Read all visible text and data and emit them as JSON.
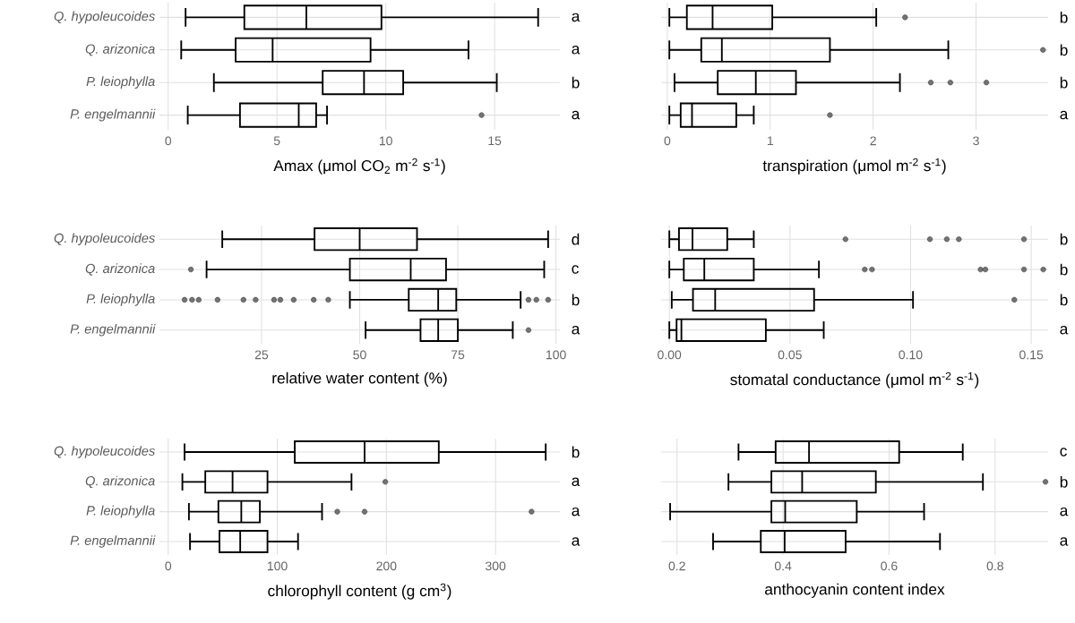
{
  "chart_data": [
    {
      "type": "box",
      "orientation": "horizontal",
      "grid": true,
      "xlabel": "Amax (μmol CO$_{2}$ m$^{-2}$ s$^{-1}$)",
      "categories": [
        "Q. hypoleucoides",
        "Q. arizonica",
        "P. leiophylla",
        "P. engelmannii"
      ],
      "xlim": [
        -0.4,
        18
      ],
      "xticks": [
        0,
        5,
        10,
        15
      ],
      "boxes": [
        {
          "low": 0.8,
          "q1": 3.5,
          "median": 6.35,
          "q3": 9.8,
          "high": 17.0
        },
        {
          "low": 0.6,
          "q1": 3.1,
          "median": 4.8,
          "q3": 9.3,
          "high": 13.8
        },
        {
          "low": 2.1,
          "q1": 7.1,
          "median": 9.0,
          "q3": 10.8,
          "high": 15.1
        },
        {
          "low": 0.9,
          "q1": 3.3,
          "median": 6.0,
          "q3": 6.8,
          "high": 7.3,
          "outliers": [
            14.4
          ]
        }
      ],
      "annotations": [
        "a",
        "a",
        "b",
        "a"
      ]
    },
    {
      "type": "box",
      "orientation": "horizontal",
      "grid": true,
      "tick_labels": "x",
      "xlabel": "transpiration (μmol m$^{-2}$ s$^{-1}$)",
      "categories": [
        null,
        null,
        null,
        null
      ],
      "xlim": [
        -0.06,
        3.7
      ],
      "xticks": [
        0,
        1,
        2,
        3
      ],
      "boxes": [
        {
          "low": 0.02,
          "q1": 0.19,
          "median": 0.44,
          "q3": 1.02,
          "high": 2.03,
          "outliers": [
            2.31
          ]
        },
        {
          "low": 0.02,
          "q1": 0.33,
          "median": 0.53,
          "q3": 1.58,
          "high": 2.73,
          "outliers": [
            3.65
          ]
        },
        {
          "low": 0.07,
          "q1": 0.49,
          "median": 0.86,
          "q3": 1.25,
          "high": 2.26,
          "outliers": [
            2.56,
            2.75,
            3.1
          ]
        },
        {
          "low": 0.02,
          "q1": 0.13,
          "median": 0.24,
          "q3": 0.67,
          "high": 0.84,
          "outliers": [
            1.58
          ]
        }
      ],
      "annotations": [
        "b",
        "b",
        "b",
        "a"
      ]
    },
    {
      "type": "box",
      "orientation": "horizontal",
      "grid": true,
      "xlabel": "relative water content (%)",
      "categories": [
        "Q. hypoleucoides",
        "Q. arizonica",
        "P. leiophylla",
        "P. engelmannii"
      ],
      "xlim": [
        -1,
        101
      ],
      "xticks": [
        25,
        50,
        75,
        100
      ],
      "boxes": [
        {
          "low": 15,
          "q1": 38.5,
          "median": 50,
          "q3": 64.6,
          "high": 98
        },
        {
          "low": 11,
          "q1": 47.5,
          "median": 63,
          "q3": 72,
          "high": 97,
          "outliers": [
            7
          ]
        },
        {
          "low": 47.5,
          "q1": 62.5,
          "median": 70,
          "q3": 74.6,
          "high": 91,
          "outliers": [
            5.4,
            7.3,
            9,
            13.8,
            20.4,
            23.5,
            28.2,
            29.8,
            33.2,
            38.3,
            42,
            93,
            95,
            98
          ]
        },
        {
          "low": 51.5,
          "q1": 65.5,
          "median": 70,
          "q3": 75,
          "high": 89,
          "outliers": [
            93
          ]
        }
      ],
      "annotations": [
        "d",
        "c",
        "b",
        "a"
      ]
    },
    {
      "type": "box",
      "orientation": "horizontal",
      "grid": true,
      "tick_labels": "x",
      "xlabel": "stomatal conductance (μmol m$^{-2}$ s$^{-1}$)",
      "categories": [
        null,
        null,
        null,
        null
      ],
      "xlim": [
        -0.0034,
        0.157
      ],
      "xticks": [
        {
          "value": 0,
          "label": "0.00"
        },
        {
          "value": 0.05,
          "label": "0.05"
        },
        {
          "value": 0.1,
          "label": "0.10"
        },
        {
          "value": 0.15,
          "label": "0.15"
        }
      ],
      "boxes": [
        {
          "low": 0,
          "q1": 0.004,
          "median": 0.0096,
          "q3": 0.024,
          "high": 0.035,
          "outliers": [
            0.073,
            0.108,
            0.115,
            0.12,
            0.147
          ]
        },
        {
          "low": 0,
          "q1": 0.006,
          "median": 0.0145,
          "q3": 0.035,
          "high": 0.062,
          "outliers": [
            0.081,
            0.084,
            0.129,
            0.131,
            0.147,
            0.155
          ]
        },
        {
          "low": 0.001,
          "q1": 0.0098,
          "median": 0.019,
          "q3": 0.06,
          "high": 0.101,
          "outliers": [
            0.143
          ]
        },
        {
          "low": 0,
          "q1": 0.003,
          "median": 0.005,
          "q3": 0.04,
          "high": 0.064
        }
      ],
      "annotations": [
        "b",
        "b",
        "b",
        "a"
      ]
    },
    {
      "type": "box",
      "orientation": "horizontal",
      "grid": true,
      "xlabel": "chlorophyll content (g cm$^{3}$)",
      "categories": [
        "Q. hypoleucoides",
        "Q. arizonica",
        "P. leiophylla",
        "P. engelmannii"
      ],
      "xlim": [
        -8,
        359
      ],
      "xticks": [
        0,
        100,
        200,
        300
      ],
      "boxes": [
        {
          "low": 15,
          "q1": 116,
          "median": 180,
          "q3": 248,
          "high": 346
        },
        {
          "low": 13,
          "q1": 34,
          "median": 59,
          "q3": 91,
          "high": 168,
          "outliers": [
            199
          ]
        },
        {
          "low": 19,
          "q1": 46,
          "median": 67,
          "q3": 84,
          "high": 141,
          "outliers": [
            155,
            180,
            333
          ]
        },
        {
          "low": 20,
          "q1": 47,
          "median": 66,
          "q3": 91,
          "high": 119
        }
      ],
      "annotations": [
        "b",
        "a",
        "a",
        "a"
      ]
    },
    {
      "type": "box",
      "orientation": "horizontal",
      "grid": true,
      "tick_labels": "x",
      "xlabel": "anthocyanin content index",
      "categories": [
        null,
        null,
        null,
        null
      ],
      "xlim": [
        0.17,
        0.9
      ],
      "xticks": [
        0.2,
        0.4,
        0.6,
        0.8
      ],
      "boxes": [
        {
          "low": 0.316,
          "q1": 0.386,
          "median": 0.449,
          "q3": 0.619,
          "high": 0.739
        },
        {
          "low": 0.297,
          "q1": 0.378,
          "median": 0.436,
          "q3": 0.575,
          "high": 0.777,
          "outliers": [
            0.895
          ]
        },
        {
          "low": 0.187,
          "q1": 0.378,
          "median": 0.404,
          "q3": 0.539,
          "high": 0.666
        },
        {
          "low": 0.268,
          "q1": 0.358,
          "median": 0.403,
          "q3": 0.518,
          "high": 0.696
        }
      ],
      "annotations": [
        "c",
        "b",
        "a",
        "a"
      ]
    }
  ]
}
